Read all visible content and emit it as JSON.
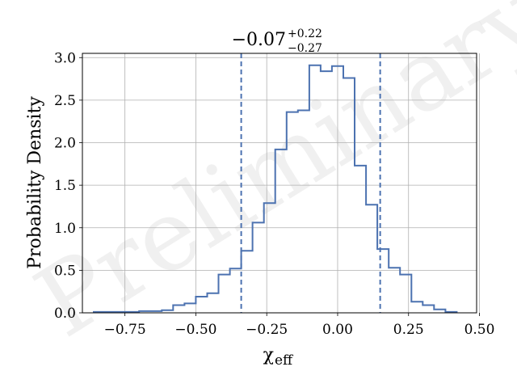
{
  "chart_data": {
    "type": "step-histogram",
    "title": {
      "median": "−0.07",
      "upper": "+0.22",
      "lower": "−0.27"
    },
    "xlabel": {
      "symbol": "χ",
      "subscript": "eff"
    },
    "ylabel": "Probability Density",
    "watermark": "Preliminary",
    "xlim": [
      -0.9,
      0.49
    ],
    "ylim": [
      0,
      3.05
    ],
    "x_ticks": [
      -0.75,
      -0.5,
      -0.25,
      0.0,
      0.25,
      0.5
    ],
    "x_tick_labels": [
      "−0.75",
      "−0.50",
      "−0.25",
      "0.00",
      "0.25",
      "0.50"
    ],
    "y_ticks": [
      0.0,
      0.5,
      1.0,
      1.5,
      2.0,
      2.5,
      3.0
    ],
    "y_tick_labels": [
      "0.0",
      "0.5",
      "1.0",
      "1.5",
      "2.0",
      "2.5",
      "3.0"
    ],
    "grid": true,
    "line_color": "#4c72b0",
    "bin_edges": [
      -0.86,
      -0.82,
      -0.78,
      -0.74,
      -0.7,
      -0.66,
      -0.62,
      -0.58,
      -0.54,
      -0.5,
      -0.46,
      -0.42,
      -0.38,
      -0.34,
      -0.3,
      -0.26,
      -0.22,
      -0.18,
      -0.14,
      -0.1,
      -0.06,
      -0.02,
      0.02,
      0.06,
      0.1,
      0.14,
      0.18,
      0.22,
      0.26,
      0.3,
      0.34,
      0.38,
      0.42
    ],
    "densities": [
      0.01,
      0.01,
      0.01,
      0.01,
      0.02,
      0.02,
      0.03,
      0.09,
      0.11,
      0.19,
      0.23,
      0.45,
      0.52,
      0.73,
      1.06,
      1.29,
      1.92,
      2.36,
      2.38,
      2.91,
      2.84,
      2.9,
      2.76,
      1.73,
      1.27,
      0.75,
      0.53,
      0.45,
      0.13,
      0.09,
      0.04,
      0.01
    ],
    "credible_interval": [
      -0.34,
      0.15
    ],
    "interval_line_style": "dashed"
  }
}
